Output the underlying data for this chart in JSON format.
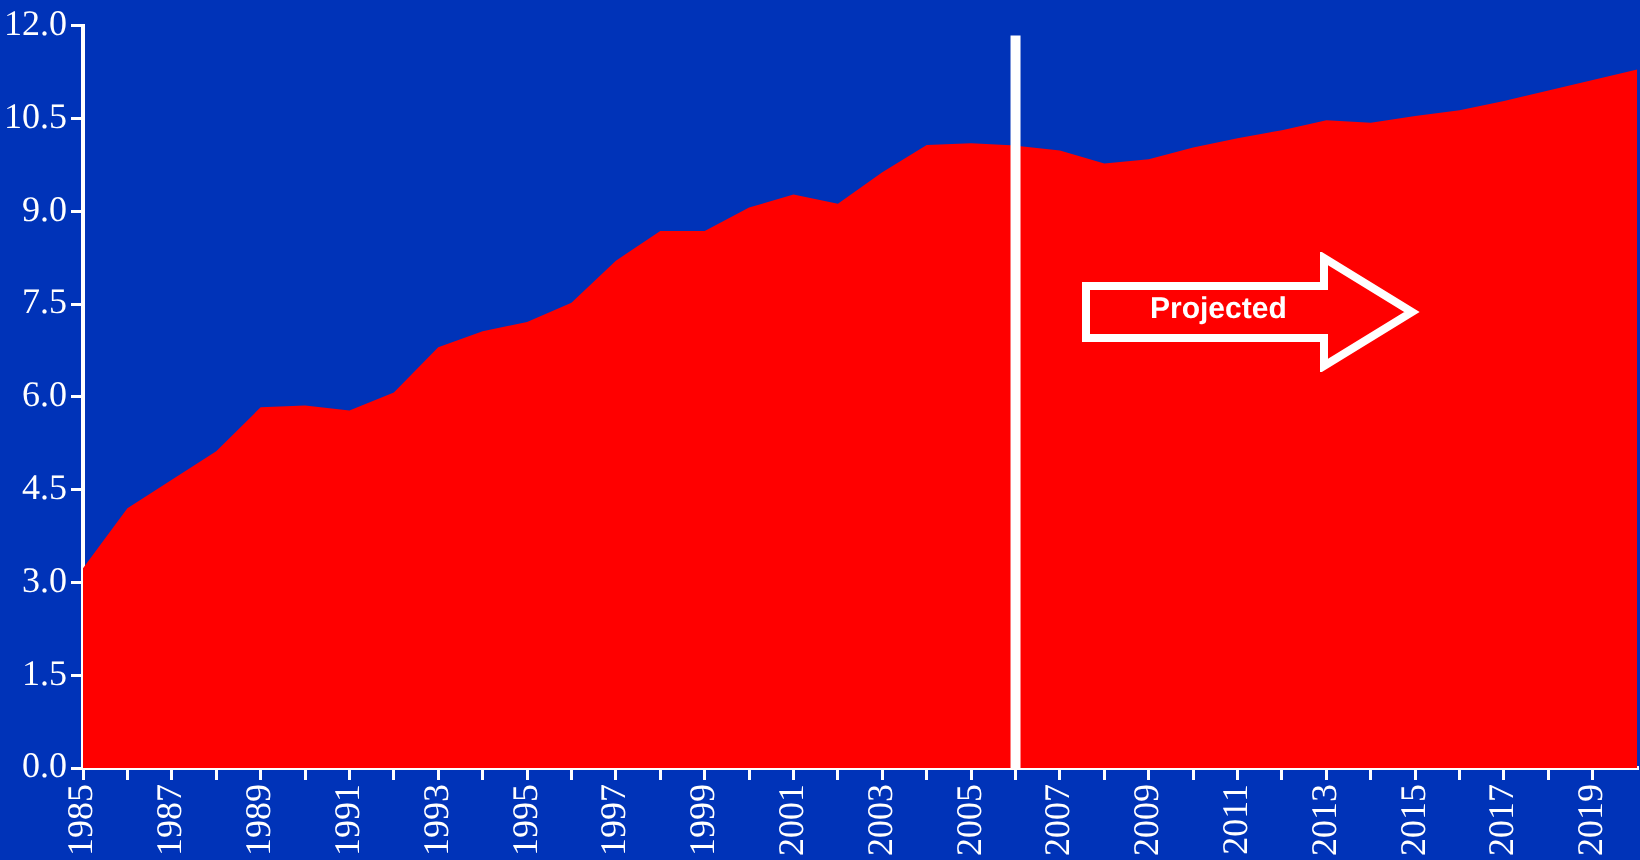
{
  "chart_data": {
    "type": "area",
    "x": [
      1985,
      1986,
      1987,
      1988,
      1989,
      1990,
      1991,
      1992,
      1993,
      1994,
      1995,
      1996,
      1997,
      1998,
      1999,
      2000,
      2001,
      2002,
      2003,
      2004,
      2005,
      2006,
      2007,
      2008,
      2009,
      2010,
      2011,
      2012,
      2013,
      2014,
      2015,
      2016,
      2017,
      2018,
      2019,
      2020
    ],
    "series": [
      {
        "color": "#ff0000",
        "values": [
          3.23,
          4.2,
          4.66,
          5.12,
          5.83,
          5.86,
          5.78,
          6.07,
          6.8,
          7.06,
          7.21,
          7.52,
          8.2,
          8.68,
          8.68,
          9.06,
          9.27,
          9.12,
          9.63,
          10.07,
          10.1,
          10.06,
          9.98,
          9.77,
          9.84,
          10.03,
          10.18,
          10.31,
          10.47,
          10.43,
          10.54,
          10.63,
          10.78,
          10.95,
          11.12,
          11.29
        ]
      }
    ],
    "xlim": [
      1985,
      2020
    ],
    "xticks": [
      1985,
      {
        "value": 1986,
        "label": null
      },
      1987,
      {
        "value": 1988,
        "label": null
      },
      1989,
      {
        "value": 1990,
        "label": null
      },
      1991,
      {
        "value": 1992,
        "label": null
      },
      1993,
      {
        "value": 1994,
        "label": null
      },
      1995,
      {
        "value": 1996,
        "label": null
      },
      1997,
      {
        "value": 1998,
        "label": null
      },
      1999,
      {
        "value": 2000,
        "label": null
      },
      2001,
      {
        "value": 2002,
        "label": null
      },
      2003,
      {
        "value": 2004,
        "label": null
      },
      2005,
      {
        "value": 2006,
        "label": null
      },
      2007,
      {
        "value": 2008,
        "label": null
      },
      2009,
      {
        "value": 2010,
        "label": null
      },
      2011,
      {
        "value": 2012,
        "label": null
      },
      2013,
      {
        "value": 2014,
        "label": null
      },
      2015,
      {
        "value": 2016,
        "label": null
      },
      2017,
      {
        "value": 2018,
        "label": null
      },
      2019
    ],
    "ylim": [
      0,
      12
    ],
    "yticks": [
      {
        "value": 0,
        "label": "0.0"
      },
      {
        "value": 1.5,
        "label": "1.5"
      },
      {
        "value": 3,
        "label": "3.0"
      },
      {
        "value": 4.5,
        "label": "4.5"
      },
      {
        "value": 6,
        "label": "6.0"
      },
      {
        "value": 7.5,
        "label": "7.5"
      },
      {
        "value": 9,
        "label": "9.0"
      },
      {
        "value": 10.5,
        "label": "10.5"
      },
      {
        "value": 12,
        "label": "12.0"
      }
    ],
    "ref_lines": [
      {
        "axis": "x",
        "value": 2006,
        "color": "#ffffff"
      }
    ],
    "annotations": [
      "Projected"
    ],
    "grid": false,
    "legend": false
  }
}
